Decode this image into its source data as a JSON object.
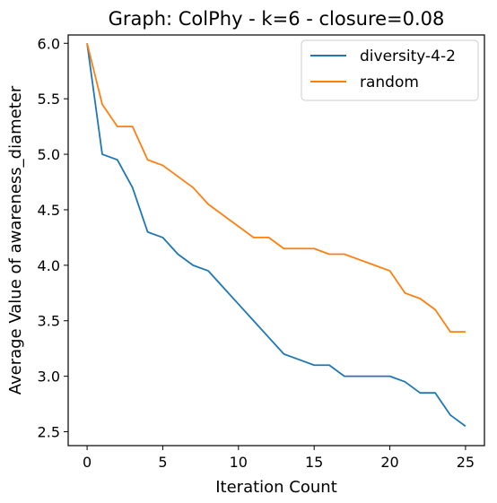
{
  "chart_data": {
    "type": "line",
    "title": "Graph: ColPhy - k=6 - closure=0.08",
    "xlabel": "Iteration Count",
    "ylabel": "Average Value of awareness_diameter",
    "xlim": [
      -1.25,
      26.25
    ],
    "ylim": [
      2.375,
      6.075
    ],
    "xticks": [
      0,
      5,
      10,
      15,
      20,
      25
    ],
    "xtick_labels": [
      "0",
      "5",
      "10",
      "15",
      "20",
      "25"
    ],
    "yticks": [
      2.5,
      3.0,
      3.5,
      4.0,
      4.5,
      5.0,
      5.5,
      6.0
    ],
    "ytick_labels": [
      "2.5",
      "3.0",
      "3.5",
      "4.0",
      "4.5",
      "5.0",
      "5.5",
      "6.0"
    ],
    "grid": false,
    "legend_position": "top-right",
    "x": [
      0,
      1,
      2,
      3,
      4,
      5,
      6,
      7,
      8,
      9,
      10,
      11,
      12,
      13,
      14,
      15,
      16,
      17,
      18,
      19,
      20,
      21,
      22,
      23,
      24,
      25
    ],
    "series": [
      {
        "name": "diversity-4-2",
        "color": "#1f77b4",
        "values": [
          6.0,
          5.0,
          4.95,
          4.7,
          4.3,
          4.25,
          4.1,
          4.0,
          3.95,
          3.8,
          3.65,
          3.5,
          3.35,
          3.2,
          3.15,
          3.1,
          3.1,
          3.0,
          3.0,
          3.0,
          3.0,
          2.95,
          2.85,
          2.85,
          2.65,
          2.55
        ]
      },
      {
        "name": "random",
        "color": "#ff7f0e",
        "values": [
          6.0,
          5.45,
          5.25,
          5.25,
          4.95,
          4.9,
          4.8,
          4.7,
          4.55,
          4.45,
          4.35,
          4.25,
          4.25,
          4.15,
          4.15,
          4.15,
          4.1,
          4.1,
          4.05,
          4.0,
          3.95,
          3.75,
          3.7,
          3.6,
          3.4,
          3.4
        ]
      }
    ]
  }
}
